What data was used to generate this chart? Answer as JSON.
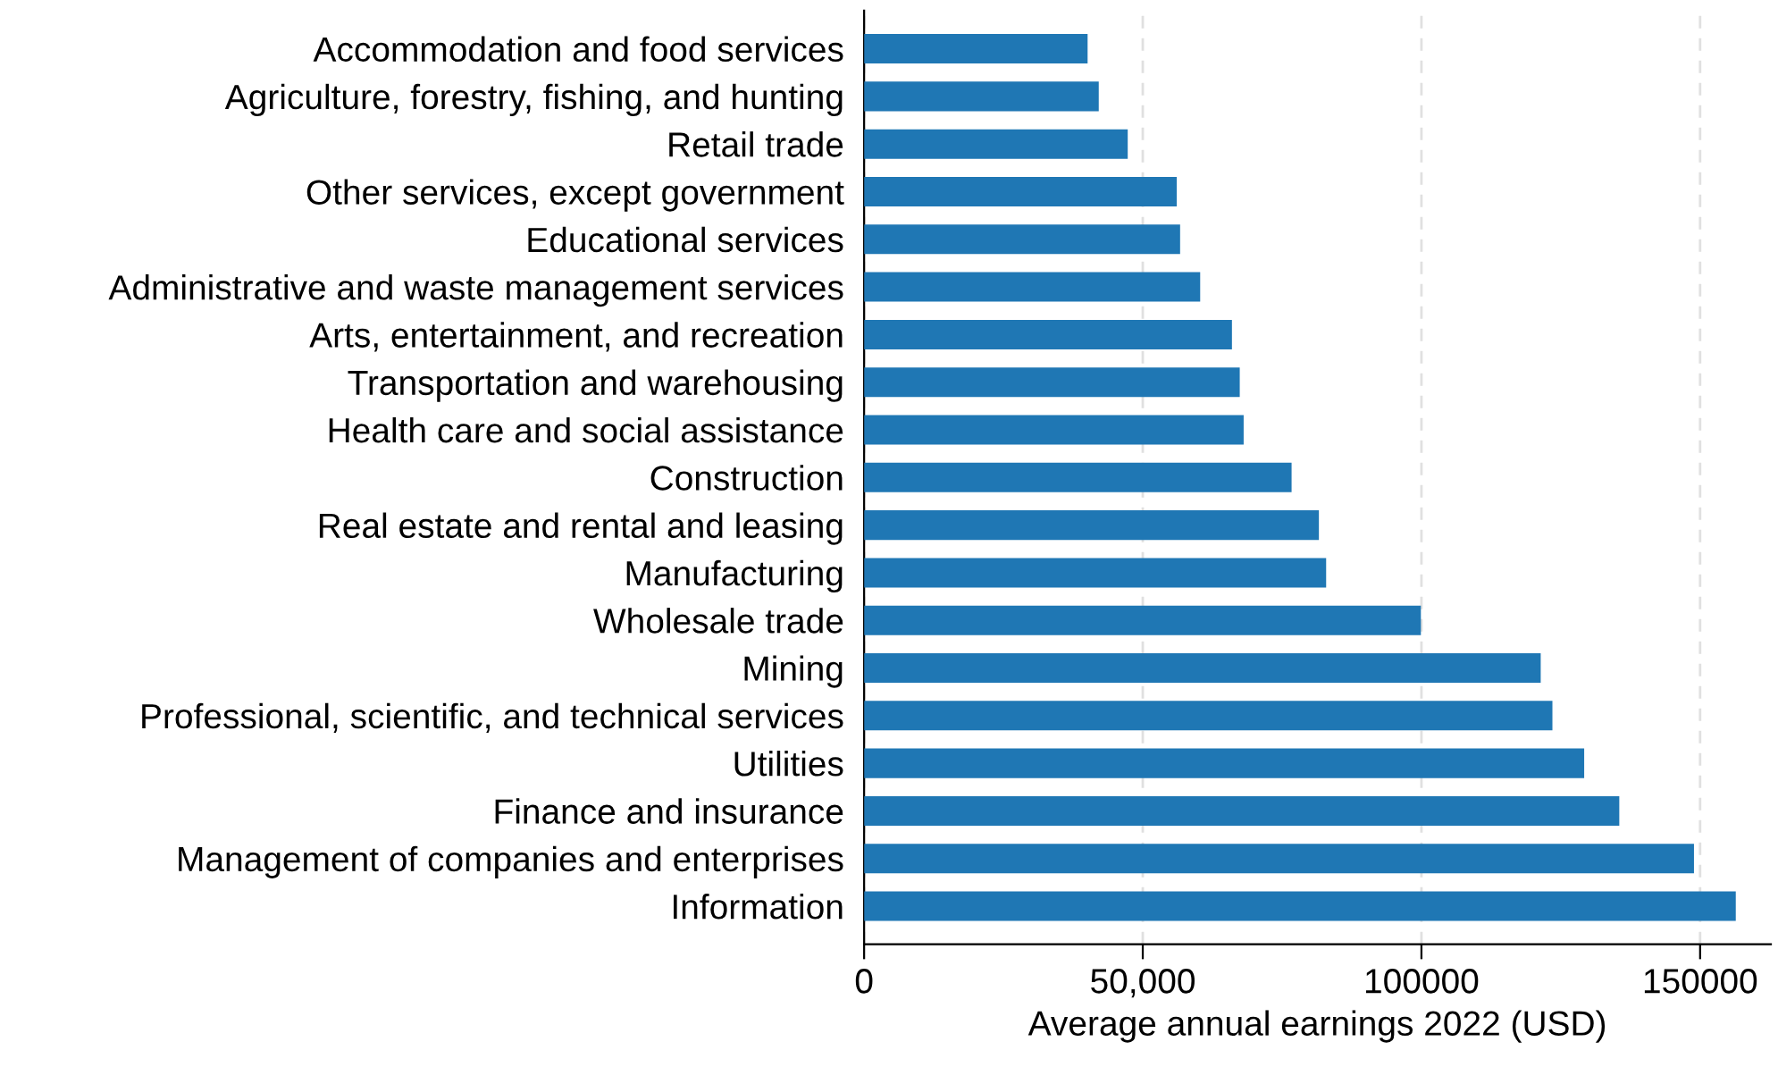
{
  "chart_data": {
    "type": "bar",
    "orientation": "horizontal",
    "xlabel": "Average annual earnings 2022 (USD)",
    "categories": [
      "Accommodation and food services",
      "Agriculture, forestry, fishing, and hunting",
      "Retail trade",
      "Other services, except government",
      "Educational services",
      "Administrative and waste management services",
      "Arts, entertainment, and recreation",
      "Transportation and warehousing",
      "Health care and social assistance",
      "Construction",
      "Real estate and rental and leasing",
      "Manufacturing",
      "Wholesale trade",
      "Mining",
      "Professional, scientific, and technical services",
      "Utilities",
      "Finance and insurance",
      "Management of companies and enterprises",
      "Information"
    ],
    "values": [
      40100,
      42100,
      47300,
      56100,
      56700,
      60300,
      66000,
      67400,
      68100,
      76700,
      81600,
      82900,
      99900,
      121400,
      123500,
      129200,
      135500,
      148900,
      156400
    ],
    "color": "#1f77b4",
    "xlim": [
      0,
      162700
    ],
    "xticks": [
      0,
      {
        "value": 50000,
        "label": "50,000"
      },
      {
        "value": 100000,
        "label": "100000"
      },
      {
        "value": 150000,
        "label": "150000"
      }
    ],
    "grid": "x"
  }
}
